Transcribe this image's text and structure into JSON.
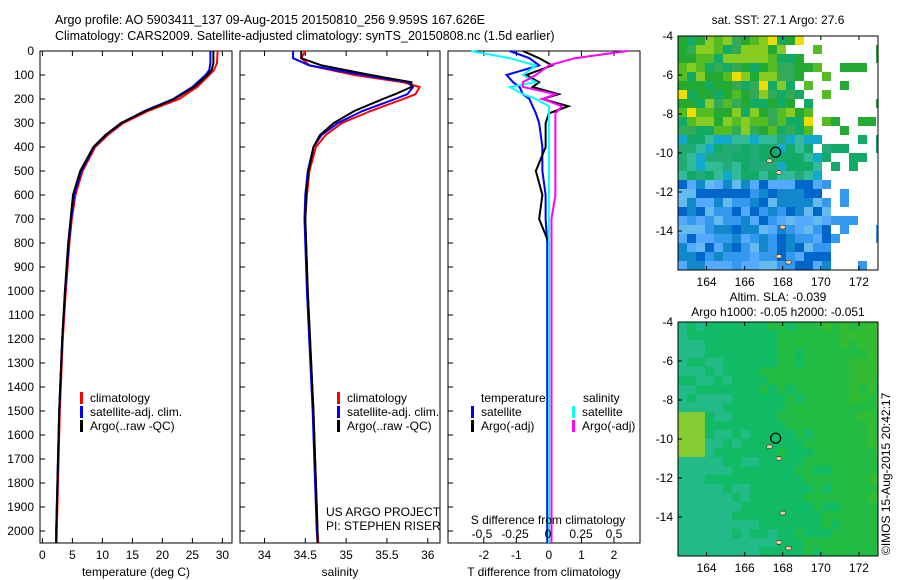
{
  "header": {
    "line1": "Argo profile: AO 5903411_137 09-Aug-2015 20150810_256 9.959S 167.626E",
    "line2": "Climatology: CARS2009. Satellite-adjusted climatology: synTS_20150808.nc (1.5d earlier)"
  },
  "side_label": "©IMOS 15-Aug-2015 20:42:17",
  "project": {
    "line1": "US ARGO PROJECT",
    "line2": "PI: STEPHEN RISER"
  },
  "colors": {
    "climatology": "#ff0000",
    "satellite": "#0000ff",
    "argo": "#000000",
    "sal_sat": "#00ffff",
    "sal_argo": "#ff00ff"
  },
  "chart_data": [
    {
      "type": "line",
      "id": "temperature",
      "xlabel": "temperature (deg C)",
      "ylabel": "",
      "xlim": [
        -0.4,
        31.6
      ],
      "ylim": [
        2050,
        0
      ],
      "xticks": [
        0,
        5,
        10,
        15,
        20,
        25,
        30
      ],
      "yticks": [
        0,
        100,
        200,
        300,
        400,
        500,
        600,
        700,
        800,
        900,
        1000,
        1100,
        1200,
        1300,
        1400,
        1500,
        1600,
        1700,
        1800,
        1900,
        2000
      ],
      "legend": [
        "climatology",
        "satellite-adj. clim.",
        "Argo(..raw -QC)"
      ],
      "depth": [
        0,
        50,
        80,
        100,
        150,
        200,
        250,
        300,
        350,
        400,
        500,
        600,
        700,
        800,
        1000,
        1200,
        1500,
        2000,
        2050
      ],
      "series": [
        {
          "name": "climatology",
          "values": [
            29.2,
            29.1,
            28.6,
            27.8,
            25.8,
            22.8,
            17.6,
            13.5,
            10.9,
            8.8,
            6.7,
            5.5,
            4.9,
            4.5,
            3.9,
            3.4,
            2.9,
            2.4,
            2.35
          ]
        },
        {
          "name": "satellite-adj. clim.",
          "values": [
            28,
            28,
            27.8,
            27.2,
            25,
            21.8,
            17,
            13.2,
            10.6,
            8.6,
            6.5,
            5.3,
            4.8,
            4.4,
            3.8,
            3.3,
            2.8,
            2.3,
            2.3
          ]
        },
        {
          "name": "Argo(..raw -QC)",
          "values": [
            28.5,
            28.5,
            28.2,
            27.5,
            25.3,
            22,
            17.2,
            13.1,
            10.5,
            8.5,
            6.3,
            5.1,
            4.7,
            4.3,
            3.75,
            3.3,
            2.8,
            2.3,
            2.3
          ]
        }
      ]
    },
    {
      "type": "line",
      "id": "salinity",
      "xlabel": "salinity",
      "xlim": [
        33.7,
        36.15
      ],
      "ylim": [
        2050,
        0
      ],
      "xticks": [
        34,
        34.5,
        35,
        35.5,
        36
      ],
      "legend": [
        "climatology",
        "satellite-adj. clim.",
        "Argo(..raw -QC)"
      ],
      "depth": [
        0,
        30,
        60,
        100,
        130,
        150,
        180,
        200,
        250,
        300,
        350,
        400,
        500,
        600,
        700,
        1000,
        1500,
        2000,
        2050
      ],
      "series": [
        {
          "name": "climatology",
          "values": [
            34.5,
            34.45,
            34.55,
            35.1,
            35.7,
            35.9,
            35.85,
            35.7,
            35.3,
            34.95,
            34.75,
            34.63,
            34.55,
            34.52,
            34.5,
            34.53,
            34.6,
            34.65,
            34.66
          ]
        },
        {
          "name": "satellite-adj. clim.",
          "values": [
            34.35,
            34.35,
            34.55,
            35.2,
            35.75,
            35.82,
            35.75,
            35.6,
            35.2,
            34.9,
            34.7,
            34.6,
            34.53,
            34.5,
            34.49,
            34.52,
            34.59,
            34.64,
            34.65
          ]
        },
        {
          "name": "Argo(..raw -QC)",
          "values": [
            34.45,
            34.45,
            34.7,
            35.3,
            35.8,
            35.8,
            35.6,
            35.45,
            35.1,
            34.85,
            34.68,
            34.6,
            34.54,
            34.51,
            34.5,
            34.53,
            34.6,
            34.65,
            34.65
          ]
        }
      ]
    },
    {
      "type": "line",
      "id": "difference",
      "xlabel": "T difference from climatology",
      "x2label": "S difference from climatology",
      "xlim": [
        -3.1,
        2.8
      ],
      "ylim": [
        2050,
        0
      ],
      "xticks": [
        -2,
        -1,
        0,
        1,
        2
      ],
      "x2ticks": [
        "-0.5",
        "-0.25",
        "0",
        "0.25",
        "0.5"
      ],
      "legend": {
        "temperature": "temperature",
        "salinity": "salinity",
        "satellite": "satellite",
        "argo": "Argo(-adj)"
      },
      "depth": [
        0,
        30,
        60,
        100,
        130,
        150,
        180,
        200,
        230,
        260,
        300,
        400,
        500,
        600,
        700,
        800,
        1000,
        1500,
        2000,
        2050
      ],
      "series": [
        {
          "name": "T satellite",
          "values": [
            -1.2,
            -0.6,
            -0.3,
            -1.3,
            -1.1,
            -0.9,
            -0.8,
            -0.6,
            -0.5,
            -0.4,
            -0.3,
            -0.2,
            -0.2,
            -0.1,
            -0.1,
            -0.05,
            -0.05,
            -0.05,
            -0.05,
            -0.05
          ]
        },
        {
          "name": "T Argo(-adj)",
          "values": [
            -0.8,
            -0.3,
            0.1,
            -0.7,
            -0.3,
            -0.5,
            0.3,
            -0.2,
            0.6,
            0,
            -0.1,
            -0.1,
            -0.4,
            -0.2,
            -0.3,
            0,
            0,
            0,
            0,
            0
          ]
        },
        {
          "name": "S satellite",
          "values": [
            -0.6,
            -0.3,
            -0.1,
            -0.2,
            -0.1,
            -0.3,
            -0.2,
            -0.1,
            0,
            0,
            0,
            0,
            0,
            0,
            0,
            0,
            0,
            0,
            0,
            0
          ]
        },
        {
          "name": "S Argo(-adj)",
          "values": [
            0.6,
            0.2,
            0,
            -0.1,
            -0.2,
            -0.2,
            0.05,
            -0.05,
            0.1,
            0.05,
            0.05,
            0.05,
            0.05,
            0.05,
            0.02,
            0.02,
            0.02,
            0.02,
            0.02,
            0.02
          ]
        }
      ]
    },
    {
      "type": "heatmap",
      "id": "sst-map",
      "title": "sat. SST: 27.1  Argo: 27.6",
      "xticks": [
        164,
        166,
        168,
        170,
        172
      ],
      "yticks": [
        -4,
        -6,
        -8,
        -10,
        -12,
        -14
      ],
      "xlim": [
        162.5,
        173
      ],
      "ylim": [
        -16,
        -4
      ],
      "argo_position": [
        167.626,
        -9.959
      ]
    },
    {
      "type": "heatmap",
      "id": "sla-map",
      "title": "Altim. SLA: -0.039",
      "subtitle": "Argo h1000: -0.05 h2000: -0.051",
      "xticks": [
        164,
        166,
        168,
        170,
        172
      ],
      "yticks": [
        -4,
        -6,
        -8,
        -10,
        -12,
        -14
      ],
      "xlim": [
        162.5,
        173
      ],
      "ylim": [
        -16,
        -4
      ],
      "argo_position": [
        167.626,
        -9.959
      ]
    }
  ]
}
